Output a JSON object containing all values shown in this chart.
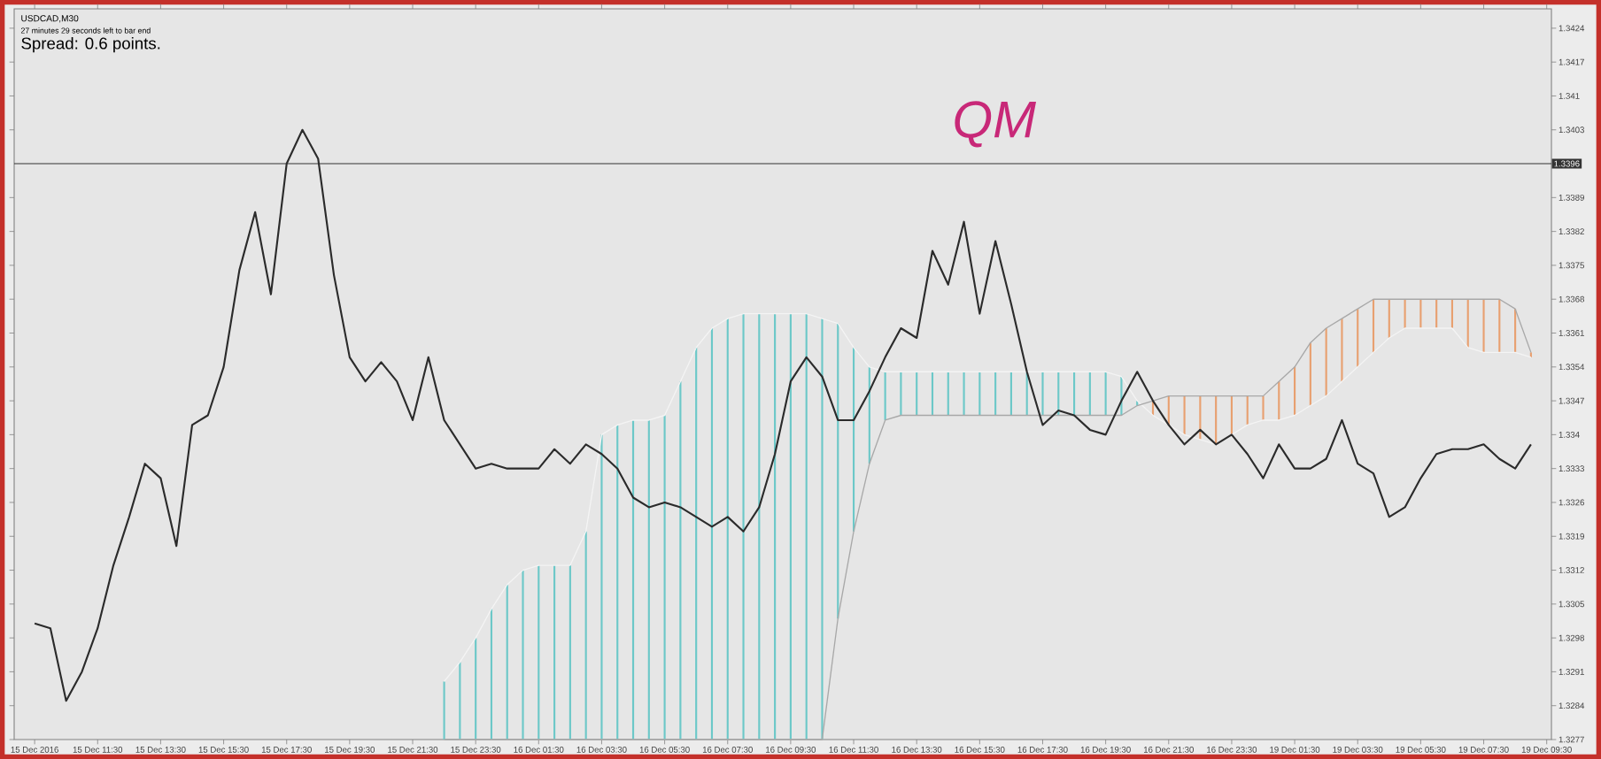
{
  "chart_data": {
    "type": "line",
    "title": "USDCAD,M30",
    "annotations": [
      "27 minutes 29 seconds left to bar end",
      "Spread: 0.6 points.",
      "QM"
    ],
    "categories": [
      "15 Dec 2016",
      null,
      null,
      null,
      "15 Dec 11:30",
      null,
      null,
      null,
      "15 Dec 13:30",
      null,
      null,
      null,
      "15 Dec 15:30",
      null,
      null,
      null,
      "15 Dec 17:30",
      null,
      null,
      null,
      "15 Dec 19:30",
      null,
      null,
      null,
      "15 Dec 21:30",
      null,
      null,
      null,
      "15 Dec 23:30",
      null,
      null,
      null,
      "16 Dec 01:30",
      null,
      null,
      null,
      "16 Dec 03:30",
      null,
      null,
      null,
      "16 Dec 05:30",
      null,
      null,
      null,
      "16 Dec 07:30",
      null,
      null,
      null,
      "16 Dec 09:30",
      null,
      null,
      null,
      "16 Dec 11:30",
      null,
      null,
      null,
      "16 Dec 13:30",
      null,
      null,
      null,
      "16 Dec 15:30",
      null,
      null,
      null,
      "16 Dec 17:30",
      null,
      null,
      null,
      "16 Dec 19:30",
      null,
      null,
      null,
      "16 Dec 21:30",
      null,
      null,
      null,
      "16 Dec 23:30",
      null,
      null,
      null,
      "19 Dec 01:30",
      null,
      null,
      null,
      "19 Dec 03:30",
      null,
      null,
      null,
      "19 Dec 05:30",
      null,
      null,
      null,
      "19 Dec 07:30",
      null,
      null,
      null,
      "19 Dec 09:30"
    ],
    "series": [
      {
        "type": "bar",
        "color": "#6cc8c8",
        "base": [
          null,
          null,
          null,
          null,
          null,
          null,
          null,
          null,
          null,
          null,
          null,
          null,
          null,
          null,
          null,
          null,
          null,
          null,
          null,
          null,
          null,
          null,
          null,
          null,
          null,
          null,
          1.3277,
          1.3277,
          1.3277,
          1.3277,
          1.3277,
          1.3277,
          1.3277,
          1.3277,
          1.3277,
          1.3277,
          1.3277,
          1.3277,
          1.3277,
          1.3277,
          1.3277,
          1.3277,
          1.3277,
          1.3277,
          1.3277,
          1.3277,
          1.3277,
          1.3277,
          1.3277,
          1.3277,
          1.3277,
          1.3302,
          1.332,
          1.3334,
          1.3343,
          1.3344,
          1.3344,
          1.3344,
          1.3344,
          1.3344,
          1.3344,
          1.3344,
          1.3344,
          1.3344,
          1.3344,
          1.3344,
          1.3344,
          1.3344,
          1.3344,
          1.3344,
          1.3346,
          null,
          null,
          null,
          null,
          null,
          null,
          null,
          null,
          null,
          null,
          null,
          null,
          null,
          null,
          null,
          null,
          null,
          null,
          null,
          null,
          null,
          null,
          null,
          null,
          null,
          null
        ],
        "values": [
          null,
          null,
          null,
          null,
          null,
          null,
          null,
          null,
          null,
          null,
          null,
          null,
          null,
          null,
          null,
          null,
          null,
          null,
          null,
          null,
          null,
          null,
          null,
          null,
          null,
          null,
          0.0012,
          0.0016,
          0.0021,
          0.0027,
          0.0032,
          0.0035,
          0.0036,
          0.0036,
          0.0036,
          0.0043,
          0.0063,
          0.0065,
          0.0066,
          0.0066,
          0.0067,
          0.0074,
          0.0081,
          0.0085,
          0.0087,
          0.0088,
          0.0088,
          0.0088,
          0.0088,
          0.0088,
          0.0087,
          0.0061,
          0.0038,
          0.002,
          0.001,
          0.0009,
          0.0009,
          0.0009,
          0.0009,
          0.0009,
          0.0009,
          0.0009,
          0.0009,
          0.0009,
          0.0009,
          0.0009,
          0.0009,
          0.0009,
          0.0009,
          0.0008,
          0.0001,
          null,
          null,
          null,
          null,
          null,
          null,
          null,
          null,
          null,
          null,
          null,
          null,
          null,
          null,
          null,
          null,
          null,
          null,
          null,
          null,
          null,
          null,
          null,
          null,
          null,
          null
        ]
      },
      {
        "type": "bar",
        "color": "#e8a070",
        "base": [
          null,
          null,
          null,
          null,
          null,
          null,
          null,
          null,
          null,
          null,
          null,
          null,
          null,
          null,
          null,
          null,
          null,
          null,
          null,
          null,
          null,
          null,
          null,
          null,
          null,
          null,
          null,
          null,
          null,
          null,
          null,
          null,
          null,
          null,
          null,
          null,
          null,
          null,
          null,
          null,
          null,
          null,
          null,
          null,
          null,
          null,
          null,
          null,
          null,
          null,
          null,
          null,
          null,
          null,
          null,
          null,
          null,
          null,
          null,
          null,
          null,
          null,
          null,
          null,
          null,
          null,
          null,
          null,
          null,
          null,
          null,
          1.3344,
          1.3342,
          1.334,
          1.3339,
          1.3338,
          1.334,
          1.3342,
          1.3343,
          1.3343,
          1.3344,
          1.3346,
          1.3348,
          1.3351,
          1.3354,
          1.3357,
          1.336,
          1.3362,
          1.3362,
          1.3362,
          1.3362,
          1.3358,
          1.3357,
          1.3357,
          1.3357,
          1.3356,
          null
        ],
        "values": [
          null,
          null,
          null,
          null,
          null,
          null,
          null,
          null,
          null,
          null,
          null,
          null,
          null,
          null,
          null,
          null,
          null,
          null,
          null,
          null,
          null,
          null,
          null,
          null,
          null,
          null,
          null,
          null,
          null,
          null,
          null,
          null,
          null,
          null,
          null,
          null,
          null,
          null,
          null,
          null,
          null,
          null,
          null,
          null,
          null,
          null,
          null,
          null,
          null,
          null,
          null,
          null,
          null,
          null,
          null,
          null,
          null,
          null,
          null,
          null,
          null,
          null,
          null,
          null,
          null,
          null,
          null,
          null,
          null,
          null,
          null,
          0.0003,
          0.0006,
          0.0008,
          0.0009,
          0.001,
          0.0008,
          0.0006,
          0.0005,
          0.0008,
          0.001,
          0.0013,
          0.0014,
          0.0013,
          0.0012,
          0.0011,
          0.0008,
          0.0006,
          0.0006,
          0.0006,
          0.0006,
          0.001,
          0.0011,
          0.0011,
          0.0009,
          0.0001,
          null
        ]
      },
      {
        "color": "#f4f4f4",
        "values": [
          null,
          null,
          null,
          null,
          null,
          null,
          null,
          null,
          null,
          null,
          null,
          null,
          null,
          null,
          null,
          null,
          null,
          null,
          null,
          null,
          null,
          null,
          null,
          null,
          null,
          null,
          1.3289,
          1.3293,
          1.3298,
          1.3304,
          1.3309,
          1.3312,
          1.3313,
          1.3313,
          1.3313,
          1.332,
          1.334,
          1.3342,
          1.3343,
          1.3343,
          1.3344,
          1.3351,
          1.3358,
          1.3362,
          1.3364,
          1.3365,
          1.3365,
          1.3365,
          1.3365,
          1.3365,
          1.3364,
          1.3363,
          1.3358,
          1.3354,
          1.3353,
          1.3353,
          1.3353,
          1.3353,
          1.3353,
          1.3353,
          1.3353,
          1.3353,
          1.3353,
          1.3353,
          1.3353,
          1.3353,
          1.3353,
          1.3353,
          1.3353,
          1.3352,
          1.3347,
          1.3344,
          1.3342,
          1.334,
          1.3339,
          1.3338,
          1.334,
          1.3342,
          1.3343,
          1.3343,
          1.3344,
          1.3346,
          1.3348,
          1.3351,
          1.3354,
          1.3357,
          1.336,
          1.3362,
          1.3362,
          1.3362,
          1.3362,
          1.3358,
          1.3357,
          1.3357,
          1.3357,
          1.3356,
          null
        ]
      },
      {
        "color": "#a8a8a8",
        "values": [
          null,
          null,
          null,
          null,
          null,
          null,
          null,
          null,
          null,
          null,
          null,
          null,
          null,
          null,
          null,
          null,
          null,
          null,
          null,
          null,
          null,
          null,
          null,
          null,
          null,
          null,
          1.3277,
          1.3277,
          1.3277,
          1.3277,
          1.3277,
          1.3277,
          1.3277,
          1.3277,
          1.3277,
          1.3277,
          1.3277,
          1.3277,
          1.3277,
          1.3277,
          1.3277,
          1.3277,
          1.3277,
          1.3277,
          1.3277,
          1.3277,
          1.3277,
          1.3277,
          1.3277,
          1.3277,
          1.3277,
          1.3302,
          1.332,
          1.3334,
          1.3343,
          1.3344,
          1.3344,
          1.3344,
          1.3344,
          1.3344,
          1.3344,
          1.3344,
          1.3344,
          1.3344,
          1.3344,
          1.3344,
          1.3344,
          1.3344,
          1.3344,
          1.3344,
          1.3346,
          1.3347,
          1.3348,
          1.3348,
          1.3348,
          1.3348,
          1.3348,
          1.3348,
          1.3348,
          1.3351,
          1.3354,
          1.3359,
          1.3362,
          1.3364,
          1.3366,
          1.3368,
          1.3368,
          1.3368,
          1.3368,
          1.3368,
          1.3368,
          1.3368,
          1.3368,
          1.3368,
          1.3366,
          1.3357,
          null
        ]
      },
      {
        "color": "#2b2b2b",
        "values": [
          1.3301,
          1.33,
          1.3285,
          1.3291,
          1.33,
          1.3313,
          1.3323,
          1.3334,
          1.3331,
          1.3317,
          1.3342,
          1.3344,
          1.3354,
          1.3374,
          1.3386,
          1.3369,
          1.3396,
          1.3403,
          1.3397,
          1.3373,
          1.3356,
          1.3351,
          1.3355,
          1.3351,
          1.3343,
          1.3356,
          1.3343,
          1.3338,
          1.3333,
          1.3334,
          1.3333,
          1.3333,
          1.3333,
          1.3337,
          1.3334,
          1.3338,
          1.3336,
          1.3333,
          1.3327,
          1.3325,
          1.3326,
          1.3325,
          1.3323,
          1.3321,
          1.3323,
          1.332,
          1.3325,
          1.3336,
          1.3351,
          1.3356,
          1.3352,
          1.3343,
          1.3343,
          1.3349,
          1.3356,
          1.3362,
          1.336,
          1.3378,
          1.3371,
          1.3384,
          1.3365,
          1.338,
          1.3367,
          1.3353,
          1.3342,
          1.3345,
          1.3344,
          1.3341,
          1.334,
          1.3347,
          1.3353,
          1.3347,
          1.3342,
          1.3338,
          1.3341,
          1.3338,
          1.334,
          1.3336,
          1.3331,
          1.3338,
          1.3333,
          1.3333,
          1.3335,
          1.3343,
          1.3334,
          1.3332,
          1.3323,
          1.3325,
          1.3331,
          1.3336,
          1.3337,
          1.3337,
          1.3338,
          1.3335,
          1.3333,
          1.3338,
          null
        ]
      }
    ],
    "ylim": [
      1.3277,
      1.3428
    ],
    "yticks": [
      1.3277,
      1.3284,
      1.3291,
      1.3298,
      1.3305,
      1.3312,
      1.3319,
      1.3326,
      1.3333,
      1.334,
      1.3347,
      1.3354,
      1.3361,
      1.3368,
      1.3375,
      1.3382,
      1.3389,
      1.3403,
      1.341,
      1.3417,
      1.3424
    ],
    "ref_lines": [
      {
        "axis": "y",
        "value": 1.3396,
        "label": "1.3396",
        "color": "#333333"
      }
    ]
  }
}
